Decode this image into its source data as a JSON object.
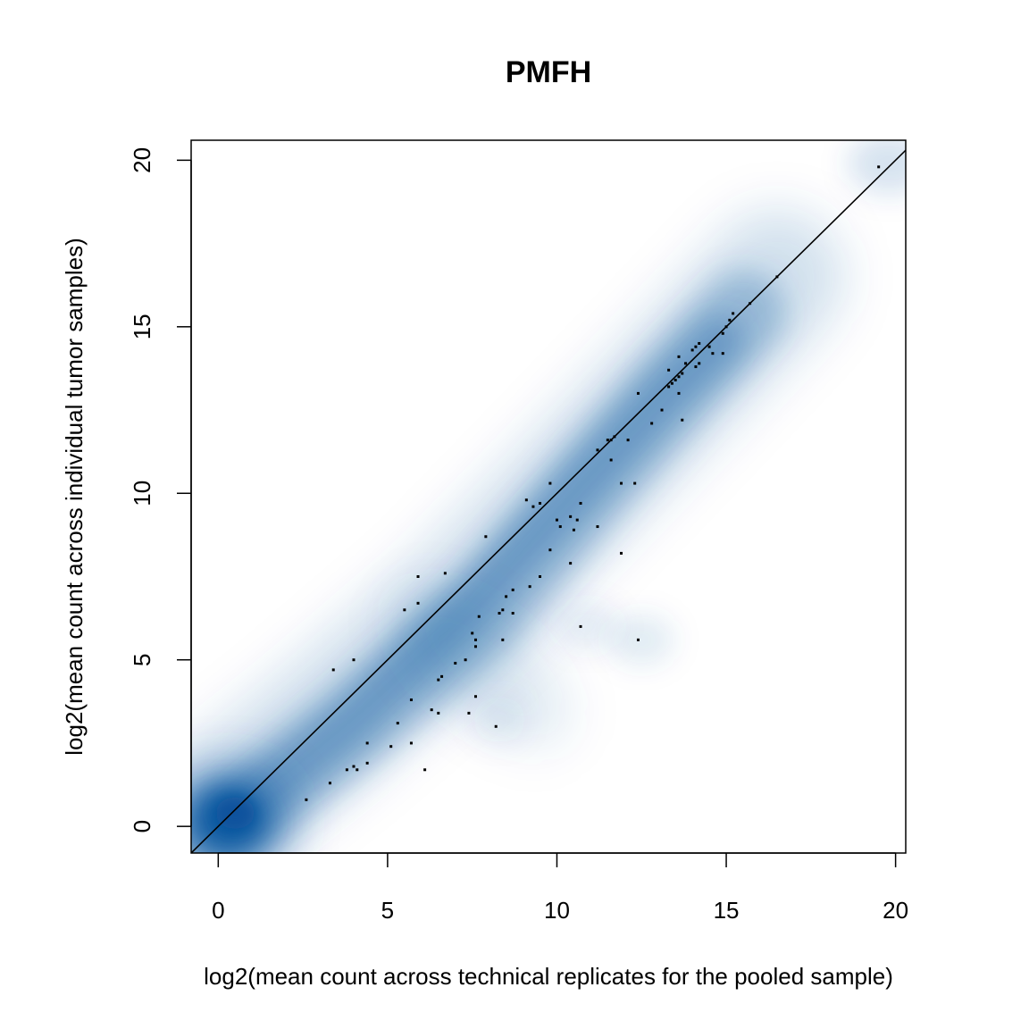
{
  "chart_data": {
    "type": "scatter",
    "title": "PMFH",
    "xlabel": "log2(mean count across technical replicates for the pooled sample)",
    "ylabel": "log2(mean count across individual tumor samples)",
    "xlim": [
      -0.8,
      20.3
    ],
    "ylim": [
      -0.8,
      20.6
    ],
    "x_ticks": [
      0,
      5,
      10,
      15,
      20
    ],
    "y_ticks": [
      0,
      5,
      10,
      15,
      20
    ],
    "grid": false,
    "legend": "none",
    "smooth_density": true,
    "reference_line": {
      "slope": 1,
      "intercept": 0
    },
    "colors": {
      "density": "#08519c",
      "points": "#000000",
      "line": "#000000"
    },
    "outlier_points": [
      [
        19.5,
        19.8
      ],
      [
        16.5,
        16.5
      ],
      [
        15.7,
        15.7
      ],
      [
        15.2,
        15.4
      ],
      [
        15.1,
        15.2
      ],
      [
        15.0,
        15.0
      ],
      [
        14.9,
        14.8
      ],
      [
        14.9,
        14.2
      ],
      [
        14.6,
        14.2
      ],
      [
        14.5,
        14.4
      ],
      [
        14.2,
        14.5
      ],
      [
        14.1,
        14.4
      ],
      [
        14.0,
        14.3
      ],
      [
        14.2,
        13.9
      ],
      [
        14.1,
        13.8
      ],
      [
        13.8,
        13.9
      ],
      [
        13.6,
        14.1
      ],
      [
        13.7,
        13.6
      ],
      [
        13.6,
        13.5
      ],
      [
        13.5,
        13.4
      ],
      [
        13.4,
        13.3
      ],
      [
        13.3,
        13.2
      ],
      [
        13.6,
        13.0
      ],
      [
        13.3,
        13.7
      ],
      [
        13.7,
        12.2
      ],
      [
        13.1,
        12.5
      ],
      [
        12.8,
        12.1
      ],
      [
        12.4,
        13.0
      ],
      [
        12.1,
        11.6
      ],
      [
        11.7,
        11.7
      ],
      [
        11.6,
        11.6
      ],
      [
        11.5,
        11.6
      ],
      [
        11.6,
        11.0
      ],
      [
        11.2,
        11.3
      ],
      [
        11.9,
        10.3
      ],
      [
        12.3,
        10.3
      ],
      [
        9.8,
        10.3
      ],
      [
        9.3,
        9.6
      ],
      [
        9.5,
        9.7
      ],
      [
        9.1,
        9.8
      ],
      [
        10.0,
        9.2
      ],
      [
        10.1,
        9.0
      ],
      [
        10.4,
        9.3
      ],
      [
        10.6,
        9.2
      ],
      [
        10.5,
        8.9
      ],
      [
        10.7,
        9.7
      ],
      [
        11.2,
        9.0
      ],
      [
        11.9,
        8.2
      ],
      [
        9.8,
        8.3
      ],
      [
        10.4,
        7.9
      ],
      [
        7.9,
        8.7
      ],
      [
        9.5,
        7.5
      ],
      [
        9.2,
        7.2
      ],
      [
        8.7,
        7.1
      ],
      [
        8.5,
        6.9
      ],
      [
        8.4,
        6.5
      ],
      [
        8.7,
        6.4
      ],
      [
        8.3,
        6.4
      ],
      [
        7.7,
        6.3
      ],
      [
        10.7,
        6.0
      ],
      [
        12.4,
        5.6
      ],
      [
        8.4,
        5.6
      ],
      [
        7.5,
        5.8
      ],
      [
        7.6,
        5.6
      ],
      [
        7.6,
        5.4
      ],
      [
        7.3,
        5.0
      ],
      [
        7.0,
        4.9
      ],
      [
        6.6,
        4.5
      ],
      [
        6.5,
        4.4
      ],
      [
        5.9,
        7.5
      ],
      [
        5.9,
        6.7
      ],
      [
        6.7,
        7.6
      ],
      [
        5.5,
        6.5
      ],
      [
        3.4,
        4.7
      ],
      [
        4.0,
        5.0
      ],
      [
        5.7,
        3.8
      ],
      [
        7.6,
        3.9
      ],
      [
        6.3,
        3.5
      ],
      [
        6.5,
        3.4
      ],
      [
        7.4,
        3.4
      ],
      [
        5.3,
        3.1
      ],
      [
        8.2,
        3.0
      ],
      [
        4.4,
        2.5
      ],
      [
        5.7,
        2.5
      ],
      [
        5.1,
        2.4
      ],
      [
        4.4,
        1.9
      ],
      [
        4.0,
        1.8
      ],
      [
        3.8,
        1.7
      ],
      [
        4.1,
        1.7
      ],
      [
        6.1,
        1.7
      ],
      [
        3.3,
        1.3
      ],
      [
        2.6,
        0.8
      ]
    ]
  }
}
